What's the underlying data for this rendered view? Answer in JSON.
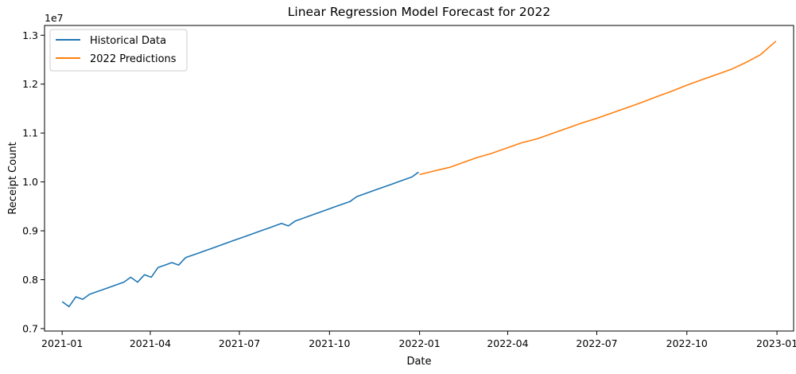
{
  "chart_data": {
    "type": "line",
    "title": "Linear Regression Model Forecast for 2022",
    "xlabel": "Date",
    "ylabel": "Receipt Count",
    "y_offset_label": "1e7",
    "xlim": [
      "2020-12-14",
      "2023-01-18"
    ],
    "ylim": [
      6.95,
      13.2
    ],
    "y_units_multiplier": 10000000.0,
    "y_ticks": [
      7.0,
      8.0,
      9.0,
      10.0,
      11.0,
      12.0,
      13.0
    ],
    "y_tick_labels": [
      "0.7",
      "0.8",
      "0.9",
      "1.0",
      "1.1",
      "1.2",
      "1.3"
    ],
    "x_ticks": [
      "2021-01-01",
      "2021-04-01",
      "2021-07-01",
      "2021-10-01",
      "2022-01-01",
      "2022-04-01",
      "2022-07-01",
      "2022-10-01",
      "2023-01-01"
    ],
    "x_tick_labels": [
      "2021-01",
      "2021-04",
      "2021-07",
      "2021-10",
      "2022-01",
      "2022-04",
      "2022-07",
      "2022-10",
      "2023-01"
    ],
    "legend": {
      "position": "top-left",
      "entries": [
        "Historical Data",
        "2022 Predictions"
      ]
    },
    "grid": false,
    "series": [
      {
        "name": "Historical Data",
        "color": "#1f77b4",
        "x": [
          "2021-01-01",
          "2021-01-08",
          "2021-01-15",
          "2021-01-22",
          "2021-01-29",
          "2021-02-05",
          "2021-02-12",
          "2021-02-19",
          "2021-02-26",
          "2021-03-05",
          "2021-03-12",
          "2021-03-19",
          "2021-03-26",
          "2021-04-02",
          "2021-04-09",
          "2021-04-16",
          "2021-04-23",
          "2021-04-30",
          "2021-05-07",
          "2021-05-14",
          "2021-05-21",
          "2021-05-28",
          "2021-06-04",
          "2021-06-11",
          "2021-06-18",
          "2021-06-25",
          "2021-07-02",
          "2021-07-09",
          "2021-07-16",
          "2021-07-23",
          "2021-07-30",
          "2021-08-06",
          "2021-08-13",
          "2021-08-20",
          "2021-08-27",
          "2021-09-03",
          "2021-09-10",
          "2021-09-17",
          "2021-09-24",
          "2021-10-01",
          "2021-10-08",
          "2021-10-15",
          "2021-10-22",
          "2021-10-29",
          "2021-11-05",
          "2021-11-12",
          "2021-11-19",
          "2021-11-26",
          "2021-12-03",
          "2021-12-10",
          "2021-12-17",
          "2021-12-24",
          "2021-12-31"
        ],
        "values": [
          7.55,
          7.45,
          7.65,
          7.6,
          7.7,
          7.75,
          7.8,
          7.85,
          7.9,
          7.95,
          8.05,
          7.95,
          8.1,
          8.05,
          8.25,
          8.3,
          8.35,
          8.3,
          8.45,
          8.5,
          8.55,
          8.6,
          8.65,
          8.7,
          8.75,
          8.8,
          8.85,
          8.9,
          8.95,
          9.0,
          9.05,
          9.1,
          9.15,
          9.1,
          9.2,
          9.25,
          9.3,
          9.35,
          9.4,
          9.45,
          9.5,
          9.55,
          9.6,
          9.7,
          9.75,
          9.8,
          9.85,
          9.9,
          9.95,
          10.0,
          10.05,
          10.1,
          10.2
        ]
      },
      {
        "name": "2022 Predictions",
        "color": "#ff7f0e",
        "x": [
          "2022-01-01",
          "2022-01-15",
          "2022-02-01",
          "2022-02-15",
          "2022-03-01",
          "2022-03-15",
          "2022-04-01",
          "2022-04-15",
          "2022-05-01",
          "2022-05-15",
          "2022-06-01",
          "2022-06-15",
          "2022-07-01",
          "2022-07-15",
          "2022-08-01",
          "2022-08-15",
          "2022-09-01",
          "2022-09-15",
          "2022-10-01",
          "2022-10-15",
          "2022-11-01",
          "2022-11-15",
          "2022-12-01",
          "2022-12-15",
          "2022-12-31"
        ],
        "values": [
          10.15,
          10.22,
          10.3,
          10.4,
          10.5,
          10.58,
          10.7,
          10.8,
          10.88,
          10.98,
          11.1,
          11.2,
          11.3,
          11.4,
          11.52,
          11.62,
          11.75,
          11.85,
          11.98,
          12.08,
          12.2,
          12.3,
          12.45,
          12.6,
          12.88
        ]
      }
    ]
  }
}
